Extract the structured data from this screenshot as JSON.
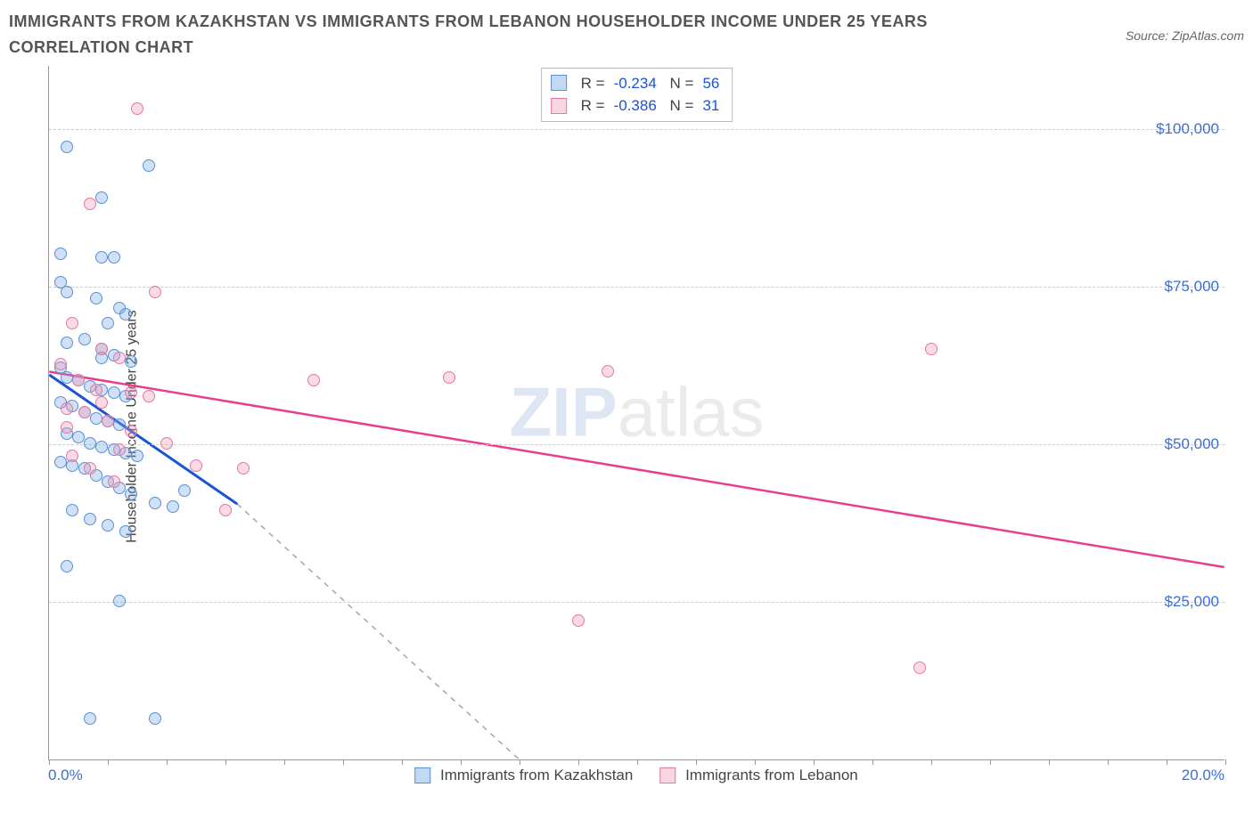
{
  "title": "IMMIGRANTS FROM KAZAKHSTAN VS IMMIGRANTS FROM LEBANON HOUSEHOLDER INCOME UNDER 25 YEARS CORRELATION CHART",
  "source": "Source: ZipAtlas.com",
  "watermark_bold": "ZIP",
  "watermark_thin": "atlas",
  "chart": {
    "type": "scatter",
    "ylabel": "Householder Income Under 25 years",
    "xlim": [
      0,
      20
    ],
    "ylim": [
      0,
      110000
    ],
    "xticks_minor": [
      0,
      1,
      2,
      3,
      4,
      5,
      6,
      7,
      8,
      9,
      10,
      11,
      12,
      13,
      14,
      15,
      16,
      17,
      18,
      19,
      20
    ],
    "xticks_labels": {
      "0": "0.0%",
      "20": "20.0%"
    },
    "yticks": [
      25000,
      50000,
      75000,
      100000
    ],
    "ytick_labels": [
      "$25,000",
      "$50,000",
      "$75,000",
      "$100,000"
    ],
    "grid_color": "#cccccc",
    "axis_color": "#999999",
    "background_color": "#ffffff",
    "label_color": "#3b6fd6",
    "series": [
      {
        "name": "Immigrants from Kazakhstan",
        "color_fill": "rgba(120,170,230,0.35)",
        "color_stroke": "#5a8fd6",
        "line_color": "#1a53d6",
        "line_dash_extend_color": "#9aa7b8",
        "R": "-0.234",
        "N": "56",
        "trend": {
          "x1": 0,
          "y1": 61000,
          "x2": 3.2,
          "y2": 40500
        },
        "trend_dash": {
          "x1": 3.2,
          "y1": 40500,
          "x2": 8.0,
          "y2": 0
        },
        "points": [
          [
            0.3,
            97000
          ],
          [
            1.7,
            94000
          ],
          [
            0.9,
            89000
          ],
          [
            0.2,
            80000
          ],
          [
            0.9,
            79500
          ],
          [
            1.1,
            79500
          ],
          [
            0.2,
            75500
          ],
          [
            0.3,
            74000
          ],
          [
            0.8,
            73000
          ],
          [
            1.2,
            71500
          ],
          [
            1.3,
            70500
          ],
          [
            1.0,
            69000
          ],
          [
            0.3,
            66000
          ],
          [
            0.6,
            66500
          ],
          [
            0.9,
            65000
          ],
          [
            1.1,
            64000
          ],
          [
            1.4,
            63000
          ],
          [
            0.2,
            62000
          ],
          [
            0.3,
            60500
          ],
          [
            0.5,
            60000
          ],
          [
            0.7,
            59000
          ],
          [
            0.9,
            58500
          ],
          [
            1.1,
            58000
          ],
          [
            1.3,
            57500
          ],
          [
            0.2,
            56500
          ],
          [
            0.4,
            56000
          ],
          [
            0.6,
            55000
          ],
          [
            0.8,
            54000
          ],
          [
            1.0,
            53500
          ],
          [
            1.2,
            53000
          ],
          [
            0.3,
            51500
          ],
          [
            0.5,
            51000
          ],
          [
            0.7,
            50000
          ],
          [
            0.9,
            49500
          ],
          [
            1.1,
            49000
          ],
          [
            1.3,
            48500
          ],
          [
            1.5,
            48000
          ],
          [
            0.2,
            47000
          ],
          [
            0.4,
            46500
          ],
          [
            0.6,
            46000
          ],
          [
            0.8,
            45000
          ],
          [
            1.0,
            44000
          ],
          [
            1.2,
            43000
          ],
          [
            1.4,
            42000
          ],
          [
            1.8,
            40500
          ],
          [
            2.1,
            40000
          ],
          [
            2.3,
            42500
          ],
          [
            0.4,
            39500
          ],
          [
            0.7,
            38000
          ],
          [
            1.0,
            37000
          ],
          [
            1.3,
            36000
          ],
          [
            0.3,
            30500
          ],
          [
            1.2,
            25000
          ],
          [
            0.7,
            6500
          ],
          [
            1.8,
            6500
          ],
          [
            0.9,
            63500
          ]
        ]
      },
      {
        "name": "Immigrants from Lebanon",
        "color_fill": "rgba(240,150,180,0.35)",
        "color_stroke": "#e07ba0",
        "line_color": "#e83e8c",
        "R": "-0.386",
        "N": "31",
        "trend": {
          "x1": 0,
          "y1": 61500,
          "x2": 20,
          "y2": 30500
        },
        "points": [
          [
            1.5,
            103000
          ],
          [
            0.7,
            88000
          ],
          [
            1.8,
            74000
          ],
          [
            0.4,
            69000
          ],
          [
            0.9,
            65000
          ],
          [
            1.2,
            63500
          ],
          [
            0.2,
            62500
          ],
          [
            0.5,
            60000
          ],
          [
            0.8,
            58500
          ],
          [
            1.4,
            58000
          ],
          [
            1.7,
            57500
          ],
          [
            0.3,
            55500
          ],
          [
            0.6,
            55000
          ],
          [
            1.0,
            53500
          ],
          [
            1.4,
            52000
          ],
          [
            2.0,
            50000
          ],
          [
            1.2,
            49000
          ],
          [
            0.4,
            48000
          ],
          [
            0.7,
            46000
          ],
          [
            1.1,
            44000
          ],
          [
            2.5,
            46500
          ],
          [
            3.3,
            46000
          ],
          [
            3.0,
            39500
          ],
          [
            4.5,
            60000
          ],
          [
            6.8,
            60500
          ],
          [
            9.5,
            61500
          ],
          [
            15.0,
            65000
          ],
          [
            9.0,
            22000
          ],
          [
            14.8,
            14500
          ],
          [
            0.3,
            52500
          ],
          [
            0.9,
            56500
          ]
        ]
      }
    ],
    "legend_bottom": [
      {
        "swatch": "blue",
        "label": "Immigrants from Kazakhstan"
      },
      {
        "swatch": "pink",
        "label": "Immigrants from Lebanon"
      }
    ]
  }
}
